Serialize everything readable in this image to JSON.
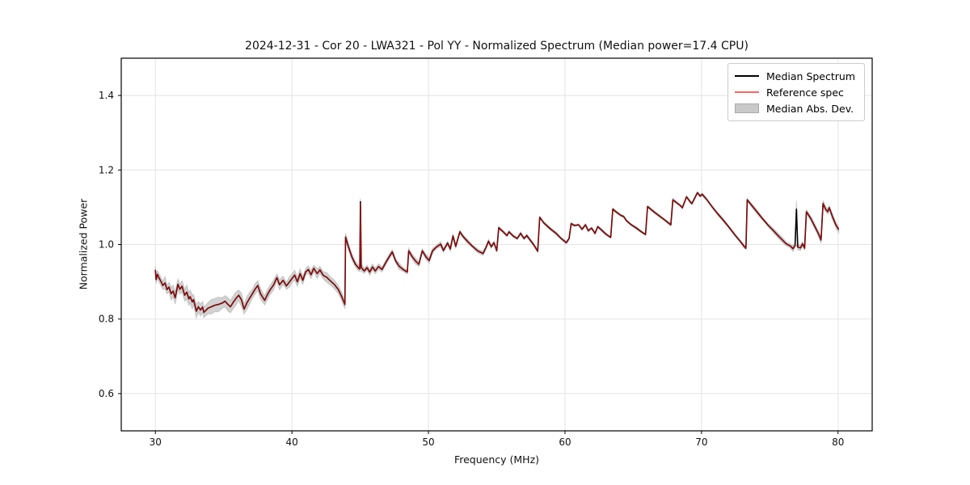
{
  "title": "2024-12-31 - Cor 20 - LWA321 - Pol YY - Normalized Spectrum (Median power=17.4 CPU)",
  "chart_data": {
    "type": "line",
    "title": "2024-12-31 - Cor 20 - LWA321 - Pol YY - Normalized Spectrum (Median power=17.4 CPU)",
    "xlabel": "Frequency (MHz)",
    "ylabel": "Normalized Power",
    "xlim": [
      27.5,
      82.5
    ],
    "ylim": [
      0.5,
      1.5
    ],
    "xticks": [
      30,
      40,
      50,
      60,
      70,
      80
    ],
    "yticks": [
      0.6,
      0.8,
      1.0,
      1.2,
      1.4
    ],
    "grid": true,
    "grid_color": "#e4e4e4",
    "background": "#ffffff",
    "legend_position": "upper right",
    "series": [
      {
        "name": "Median Spectrum",
        "kind": "line",
        "color": "#000000",
        "points": [
          [
            30.0,
            0.932
          ],
          [
            30.05,
            0.906
          ],
          [
            30.15,
            0.92
          ],
          [
            30.3,
            0.908
          ],
          [
            30.45,
            0.898
          ],
          [
            30.55,
            0.89
          ],
          [
            30.7,
            0.897
          ],
          [
            30.85,
            0.879
          ],
          [
            31.0,
            0.886
          ],
          [
            31.15,
            0.868
          ],
          [
            31.3,
            0.875
          ],
          [
            31.45,
            0.857
          ],
          [
            31.65,
            0.893
          ],
          [
            31.8,
            0.88
          ],
          [
            31.95,
            0.888
          ],
          [
            32.15,
            0.864
          ],
          [
            32.3,
            0.872
          ],
          [
            32.45,
            0.854
          ],
          [
            32.55,
            0.86
          ],
          [
            32.7,
            0.846
          ],
          [
            32.8,
            0.852
          ],
          [
            33.0,
            0.821
          ],
          [
            33.15,
            0.833
          ],
          [
            33.3,
            0.824
          ],
          [
            33.45,
            0.832
          ],
          [
            33.55,
            0.818
          ],
          [
            33.85,
            0.829
          ],
          [
            34.1,
            0.833
          ],
          [
            34.35,
            0.837
          ],
          [
            34.6,
            0.839
          ],
          [
            34.9,
            0.843
          ],
          [
            35.1,
            0.848
          ],
          [
            35.3,
            0.84
          ],
          [
            35.5,
            0.833
          ],
          [
            35.7,
            0.845
          ],
          [
            35.9,
            0.855
          ],
          [
            36.1,
            0.864
          ],
          [
            36.3,
            0.852
          ],
          [
            36.5,
            0.827
          ],
          [
            36.7,
            0.843
          ],
          [
            36.9,
            0.856
          ],
          [
            37.1,
            0.868
          ],
          [
            37.3,
            0.88
          ],
          [
            37.5,
            0.89
          ],
          [
            37.7,
            0.868
          ],
          [
            38.0,
            0.85
          ],
          [
            38.2,
            0.865
          ],
          [
            38.4,
            0.878
          ],
          [
            38.65,
            0.891
          ],
          [
            38.9,
            0.911
          ],
          [
            39.1,
            0.892
          ],
          [
            39.35,
            0.904
          ],
          [
            39.6,
            0.889
          ],
          [
            39.8,
            0.899
          ],
          [
            40.0,
            0.908
          ],
          [
            40.2,
            0.918
          ],
          [
            40.4,
            0.9
          ],
          [
            40.6,
            0.922
          ],
          [
            40.8,
            0.904
          ],
          [
            41.0,
            0.926
          ],
          [
            41.2,
            0.933
          ],
          [
            41.4,
            0.919
          ],
          [
            41.6,
            0.936
          ],
          [
            41.85,
            0.922
          ],
          [
            42.05,
            0.932
          ],
          [
            42.3,
            0.917
          ],
          [
            42.55,
            0.912
          ],
          [
            42.8,
            0.903
          ],
          [
            43.1,
            0.893
          ],
          [
            43.4,
            0.879
          ],
          [
            43.65,
            0.86
          ],
          [
            43.88,
            0.839
          ],
          [
            43.93,
            1.02
          ],
          [
            44.15,
            0.993
          ],
          [
            44.4,
            0.966
          ],
          [
            44.65,
            0.947
          ],
          [
            44.85,
            0.938
          ],
          [
            44.97,
            0.934
          ],
          [
            45.02,
            1.115
          ],
          [
            45.08,
            0.938
          ],
          [
            45.3,
            0.929
          ],
          [
            45.5,
            0.938
          ],
          [
            45.7,
            0.926
          ],
          [
            45.9,
            0.94
          ],
          [
            46.1,
            0.929
          ],
          [
            46.35,
            0.941
          ],
          [
            46.6,
            0.933
          ],
          [
            46.85,
            0.95
          ],
          [
            47.1,
            0.966
          ],
          [
            47.35,
            0.98
          ],
          [
            47.6,
            0.956
          ],
          [
            47.85,
            0.942
          ],
          [
            48.15,
            0.933
          ],
          [
            48.45,
            0.926
          ],
          [
            48.55,
            0.983
          ],
          [
            48.8,
            0.968
          ],
          [
            49.05,
            0.956
          ],
          [
            49.3,
            0.947
          ],
          [
            49.55,
            0.983
          ],
          [
            49.8,
            0.968
          ],
          [
            50.05,
            0.957
          ],
          [
            50.3,
            0.983
          ],
          [
            50.6,
            0.994
          ],
          [
            50.9,
            1.001
          ],
          [
            51.1,
            0.984
          ],
          [
            51.4,
            1.004
          ],
          [
            51.6,
            0.988
          ],
          [
            51.8,
            1.023
          ],
          [
            52.0,
            0.995
          ],
          [
            52.3,
            1.034
          ],
          [
            52.55,
            1.021
          ],
          [
            52.85,
            1.009
          ],
          [
            53.2,
            0.996
          ],
          [
            53.6,
            0.983
          ],
          [
            54.0,
            0.976
          ],
          [
            54.2,
            0.991
          ],
          [
            54.4,
            1.009
          ],
          [
            54.6,
            0.994
          ],
          [
            54.8,
            1.005
          ],
          [
            55.0,
            0.983
          ],
          [
            55.15,
            1.045
          ],
          [
            55.45,
            1.035
          ],
          [
            55.75,
            1.024
          ],
          [
            55.9,
            1.034
          ],
          [
            56.2,
            1.023
          ],
          [
            56.5,
            1.016
          ],
          [
            56.75,
            1.03
          ],
          [
            57.0,
            1.016
          ],
          [
            57.2,
            1.024
          ],
          [
            57.45,
            1.012
          ],
          [
            57.7,
            1.0
          ],
          [
            58.0,
            0.982
          ],
          [
            58.15,
            1.073
          ],
          [
            58.45,
            1.058
          ],
          [
            58.75,
            1.048
          ],
          [
            59.0,
            1.04
          ],
          [
            59.35,
            1.03
          ],
          [
            59.7,
            1.017
          ],
          [
            60.1,
            1.005
          ],
          [
            60.3,
            1.016
          ],
          [
            60.45,
            1.056
          ],
          [
            60.7,
            1.051
          ],
          [
            61.0,
            1.053
          ],
          [
            61.25,
            1.041
          ],
          [
            61.5,
            1.053
          ],
          [
            61.7,
            1.037
          ],
          [
            61.95,
            1.044
          ],
          [
            62.2,
            1.03
          ],
          [
            62.4,
            1.048
          ],
          [
            62.7,
            1.038
          ],
          [
            63.0,
            1.028
          ],
          [
            63.35,
            1.019
          ],
          [
            63.5,
            1.095
          ],
          [
            63.8,
            1.086
          ],
          [
            64.1,
            1.078
          ],
          [
            64.3,
            1.075
          ],
          [
            64.5,
            1.064
          ],
          [
            64.85,
            1.053
          ],
          [
            65.2,
            1.045
          ],
          [
            65.6,
            1.034
          ],
          [
            65.9,
            1.027
          ],
          [
            66.05,
            1.102
          ],
          [
            66.5,
            1.088
          ],
          [
            66.9,
            1.077
          ],
          [
            67.3,
            1.066
          ],
          [
            67.75,
            1.053
          ],
          [
            67.9,
            1.12
          ],
          [
            68.4,
            1.106
          ],
          [
            68.6,
            1.099
          ],
          [
            68.9,
            1.128
          ],
          [
            69.2,
            1.113
          ],
          [
            69.3,
            1.11
          ],
          [
            69.7,
            1.139
          ],
          [
            69.9,
            1.13
          ],
          [
            70.05,
            1.135
          ],
          [
            70.4,
            1.12
          ],
          [
            70.8,
            1.1
          ],
          [
            71.2,
            1.082
          ],
          [
            71.6,
            1.065
          ],
          [
            72.0,
            1.047
          ],
          [
            72.4,
            1.028
          ],
          [
            72.8,
            1.01
          ],
          [
            73.1,
            0.996
          ],
          [
            73.25,
            0.99
          ],
          [
            73.35,
            1.12
          ],
          [
            73.7,
            1.104
          ],
          [
            74.1,
            1.086
          ],
          [
            74.5,
            1.068
          ],
          [
            74.9,
            1.051
          ],
          [
            75.3,
            1.036
          ],
          [
            75.6,
            1.024
          ],
          [
            75.9,
            1.013
          ],
          [
            76.2,
            1.002
          ],
          [
            76.5,
            0.996
          ],
          [
            76.7,
            0.989
          ],
          [
            76.85,
            0.998
          ],
          [
            76.95,
            1.095
          ],
          [
            77.05,
            0.993
          ],
          [
            77.25,
            0.991
          ],
          [
            77.4,
            1.002
          ],
          [
            77.55,
            0.99
          ],
          [
            77.68,
            1.088
          ],
          [
            78.0,
            1.07
          ],
          [
            78.3,
            1.048
          ],
          [
            78.55,
            1.03
          ],
          [
            78.75,
            1.012
          ],
          [
            78.9,
            1.11
          ],
          [
            79.1,
            1.094
          ],
          [
            79.25,
            1.088
          ],
          [
            79.35,
            1.099
          ],
          [
            79.6,
            1.074
          ],
          [
            79.85,
            1.052
          ],
          [
            80.05,
            1.04
          ]
        ]
      },
      {
        "name": "Reference spec",
        "kind": "line",
        "color": "#ff0000",
        "opacity": 0.62,
        "same_as_median": true,
        "overrides": [
          [
            45.02,
            1.11
          ],
          [
            76.95,
            0.997
          ]
        ]
      },
      {
        "name": "Median Abs. Dev.",
        "kind": "band",
        "color": "#c9c9c9",
        "edge_color": "#aaaaaa",
        "half_width_breakpoints": [
          [
            30,
            0.013
          ],
          [
            33,
            0.016
          ],
          [
            36,
            0.016
          ],
          [
            38,
            0.013
          ],
          [
            41,
            0.011
          ],
          [
            43.8,
            0.012
          ],
          [
            44.3,
            0.009
          ],
          [
            46,
            0.008
          ],
          [
            48,
            0.007
          ],
          [
            50,
            0.006
          ],
          [
            53,
            0.005
          ],
          [
            56,
            0.004
          ],
          [
            58.5,
            0.0035
          ],
          [
            65,
            0.003
          ],
          [
            70,
            0.0035
          ],
          [
            73,
            0.004
          ],
          [
            74.5,
            0.005
          ],
          [
            76,
            0.006
          ],
          [
            76.9,
            0.007
          ],
          [
            76.95,
            0.022
          ],
          [
            77.05,
            0.007
          ],
          [
            78,
            0.006
          ],
          [
            80.05,
            0.008
          ]
        ]
      }
    ]
  }
}
